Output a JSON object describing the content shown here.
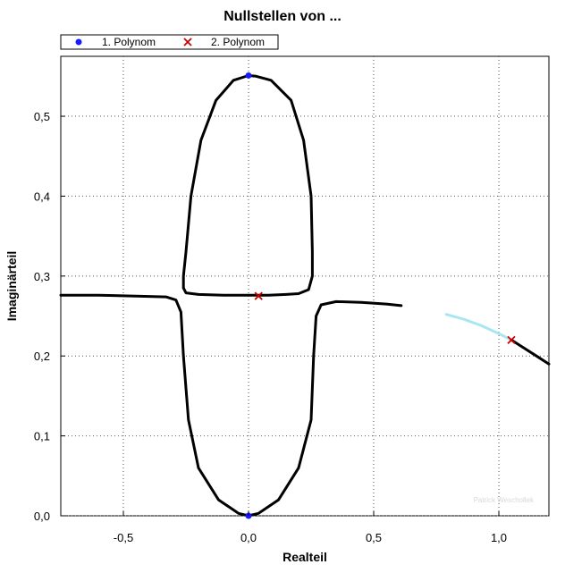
{
  "chart_data": {
    "type": "scatter",
    "title": "Nullstellen von ...",
    "xlabel": "Realteil",
    "ylabel": "Imaginärteil",
    "xlim": [
      -0.75,
      1.2
    ],
    "ylim": [
      0.0,
      0.575
    ],
    "x_ticks": [
      -0.5,
      0.0,
      0.5,
      1.0
    ],
    "x_tick_labels": [
      "-0,5",
      "0,0",
      "0,5",
      "1,0"
    ],
    "y_ticks": [
      0.0,
      0.1,
      0.2,
      0.3,
      0.4,
      0.5
    ],
    "y_tick_labels": [
      "0,0",
      "0,1",
      "0,2",
      "0,3",
      "0,4",
      "0,5"
    ],
    "grid": true,
    "legend_position": "top-left",
    "watermark": "Patrick Weschollek",
    "series": [
      {
        "name": "1. Polynom",
        "marker": "circle",
        "color": "#1a1aff",
        "points": [
          [
            0.0,
            0.551
          ],
          [
            0.0,
            0.0
          ]
        ]
      },
      {
        "name": "2. Polynom",
        "marker": "x",
        "color": "#cc0000",
        "points": [
          [
            0.04,
            0.275
          ],
          [
            1.05,
            0.22
          ]
        ]
      }
    ],
    "paths": [
      {
        "color": "#000000",
        "points": [
          [
            -0.75,
            0.276
          ],
          [
            -0.6,
            0.276
          ],
          [
            -0.45,
            0.275
          ],
          [
            -0.33,
            0.274
          ],
          [
            -0.29,
            0.27
          ],
          [
            -0.27,
            0.255
          ],
          [
            -0.26,
            0.2
          ],
          [
            -0.24,
            0.12
          ],
          [
            -0.2,
            0.06
          ],
          [
            -0.12,
            0.02
          ],
          [
            -0.04,
            0.003
          ],
          [
            0.0,
            0.0
          ],
          [
            0.04,
            0.003
          ],
          [
            0.12,
            0.02
          ],
          [
            0.2,
            0.06
          ],
          [
            0.25,
            0.12
          ],
          [
            0.26,
            0.2
          ],
          [
            0.27,
            0.25
          ],
          [
            0.29,
            0.264
          ],
          [
            0.35,
            0.268
          ],
          [
            0.45,
            0.267
          ],
          [
            0.55,
            0.265
          ],
          [
            0.61,
            0.263
          ]
        ]
      },
      {
        "color": "#000000",
        "points": [
          [
            0.0,
            0.551
          ],
          [
            -0.06,
            0.545
          ],
          [
            -0.13,
            0.52
          ],
          [
            -0.19,
            0.47
          ],
          [
            -0.23,
            0.4
          ],
          [
            -0.25,
            0.33
          ],
          [
            -0.26,
            0.3
          ],
          [
            -0.26,
            0.285
          ],
          [
            -0.25,
            0.279
          ],
          [
            -0.2,
            0.277
          ],
          [
            -0.1,
            0.276
          ],
          [
            0.0,
            0.276
          ],
          [
            0.08,
            0.276
          ],
          [
            0.15,
            0.277
          ],
          [
            0.2,
            0.278
          ],
          [
            0.24,
            0.283
          ],
          [
            0.255,
            0.3
          ],
          [
            0.255,
            0.33
          ],
          [
            0.25,
            0.4
          ],
          [
            0.22,
            0.47
          ],
          [
            0.17,
            0.52
          ],
          [
            0.09,
            0.545
          ],
          [
            0.03,
            0.55
          ],
          [
            0.0,
            0.551
          ]
        ]
      },
      {
        "color": "#a8e6f2",
        "points": [
          [
            0.79,
            0.252
          ],
          [
            0.86,
            0.246
          ],
          [
            0.93,
            0.238
          ],
          [
            1.0,
            0.228
          ],
          [
            1.05,
            0.22
          ]
        ]
      },
      {
        "color": "#000000",
        "points": [
          [
            1.05,
            0.22
          ],
          [
            1.1,
            0.21
          ],
          [
            1.15,
            0.2
          ],
          [
            1.2,
            0.19
          ]
        ]
      }
    ]
  }
}
